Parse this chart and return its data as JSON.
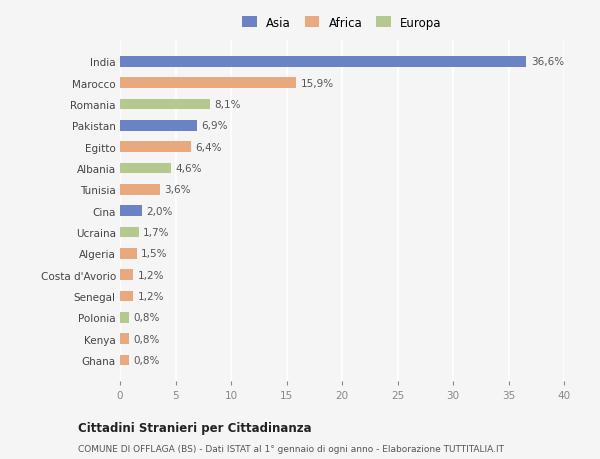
{
  "categories": [
    "Ghana",
    "Kenya",
    "Polonia",
    "Senegal",
    "Costa d'Avorio",
    "Algeria",
    "Ucraina",
    "Cina",
    "Tunisia",
    "Albania",
    "Egitto",
    "Pakistan",
    "Romania",
    "Marocco",
    "India"
  ],
  "values": [
    0.8,
    0.8,
    0.8,
    1.2,
    1.2,
    1.5,
    1.7,
    2.0,
    3.6,
    4.6,
    6.4,
    6.9,
    8.1,
    15.9,
    36.6
  ],
  "labels": [
    "0,8%",
    "0,8%",
    "0,8%",
    "1,2%",
    "1,2%",
    "1,5%",
    "1,7%",
    "2,0%",
    "3,6%",
    "4,6%",
    "6,4%",
    "6,9%",
    "8,1%",
    "15,9%",
    "36,6%"
  ],
  "continent": [
    "Africa",
    "Africa",
    "Europa",
    "Africa",
    "Africa",
    "Africa",
    "Europa",
    "Asia",
    "Africa",
    "Europa",
    "Africa",
    "Asia",
    "Europa",
    "Africa",
    "Asia"
  ],
  "colors": {
    "Asia": "#6b82c4",
    "Africa": "#e8a97e",
    "Europa": "#b5c98e"
  },
  "xlim": [
    0,
    40
  ],
  "xticks": [
    0,
    5,
    10,
    15,
    20,
    25,
    30,
    35,
    40
  ],
  "title": "Cittadini Stranieri per Cittadinanza",
  "subtitle": "COMUNE DI OFFLAGA (BS) - Dati ISTAT al 1° gennaio di ogni anno - Elaborazione TUTTITALIA.IT",
  "background_color": "#f5f5f5",
  "legend_labels": [
    "Asia",
    "Africa",
    "Europa"
  ],
  "legend_colors": [
    "#6b82c4",
    "#e8a97e",
    "#b5c98e"
  ]
}
